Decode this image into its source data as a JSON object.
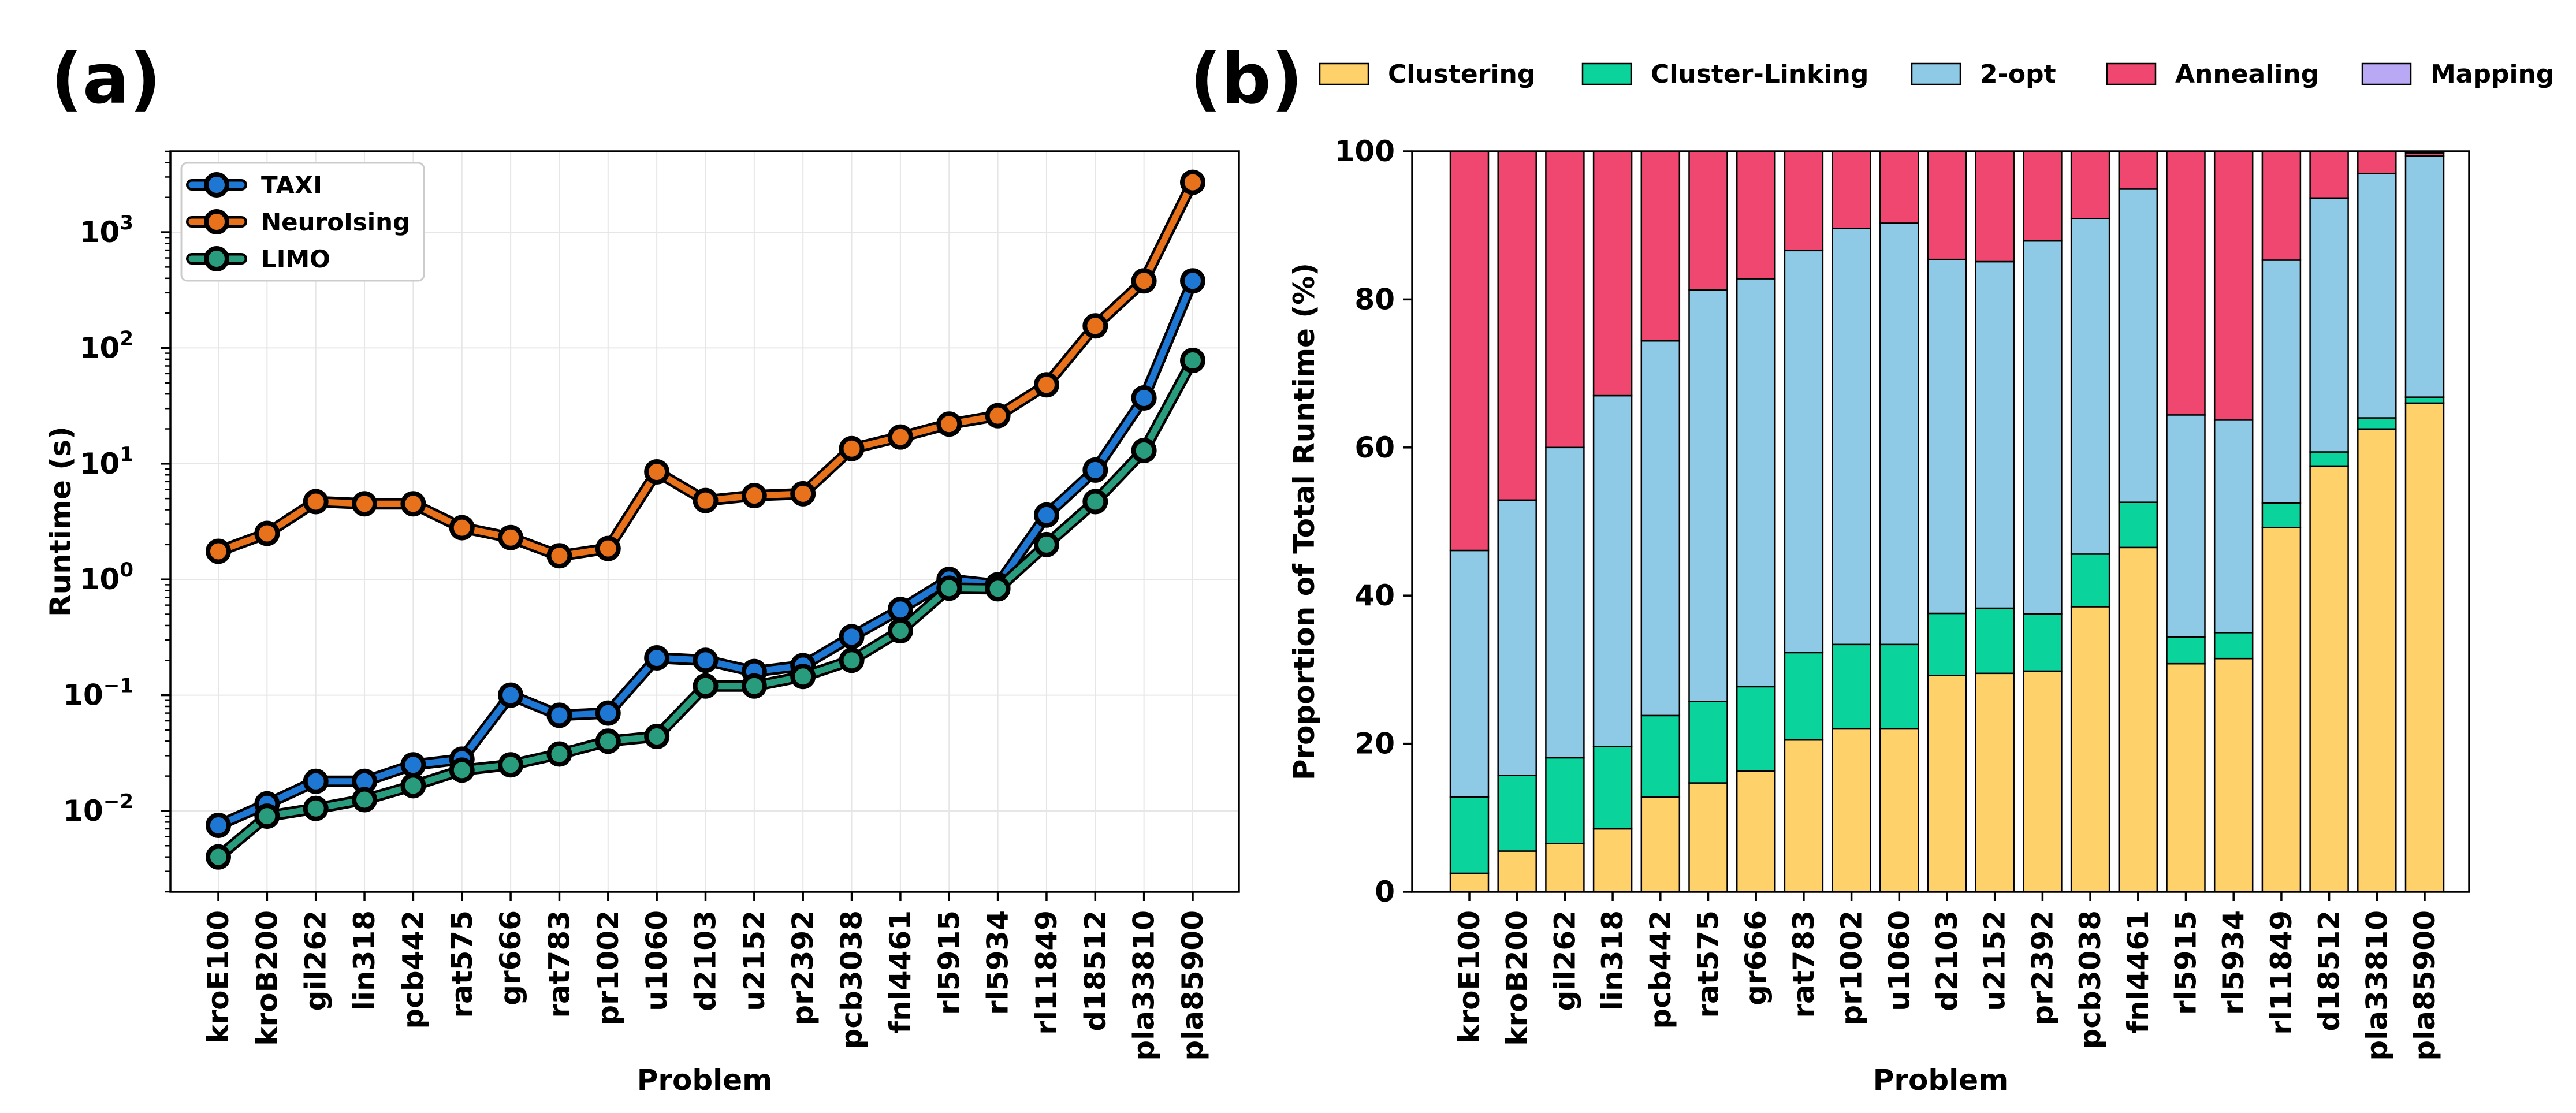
{
  "panel_labels": {
    "a": "(a)",
    "b": "(b)"
  },
  "chart_data": [
    {
      "type": "line",
      "panel": "(a)",
      "xlabel": "Problem",
      "ylabel": "Runtime (s)",
      "yscale": "log",
      "ylim": [
        0.002,
        5000
      ],
      "y_ticks": [
        {
          "value": 0.01,
          "base": "10",
          "exp": "−2"
        },
        {
          "value": 0.1,
          "base": "10",
          "exp": "−1"
        },
        {
          "value": 1,
          "base": "10",
          "exp": "0"
        },
        {
          "value": 10,
          "base": "10",
          "exp": "1"
        },
        {
          "value": 100,
          "base": "10",
          "exp": "2"
        },
        {
          "value": 1000,
          "base": "10",
          "exp": "3"
        }
      ],
      "grid": true,
      "legend_position": "top-left",
      "categories": [
        "kroE100",
        "kroB200",
        "gil262",
        "lin318",
        "pcb442",
        "rat575",
        "gr666",
        "rat783",
        "pr1002",
        "u1060",
        "d2103",
        "u2152",
        "pr2392",
        "pcb3038",
        "fnl4461",
        "rl5915",
        "rl5934",
        "rl11849",
        "d18512",
        "pla33810",
        "pla85900"
      ],
      "series": [
        {
          "name": "TAXI",
          "color": "#1f77d4",
          "values": [
            0.0075,
            0.0115,
            0.018,
            0.018,
            0.025,
            0.028,
            0.1,
            0.067,
            0.07,
            0.21,
            0.2,
            0.16,
            0.18,
            0.32,
            0.55,
            1.0,
            0.9,
            3.6,
            8.8,
            37,
            380
          ]
        },
        {
          "name": "NeuroIsing",
          "color": "#e8711c",
          "values": [
            1.75,
            2.5,
            4.7,
            4.5,
            4.5,
            2.8,
            2.3,
            1.6,
            1.85,
            8.5,
            4.8,
            5.3,
            5.5,
            13.5,
            17,
            22,
            26,
            48,
            155,
            380,
            2700
          ]
        },
        {
          "name": "LIMO",
          "color": "#2a9c7e",
          "values": [
            0.004,
            0.009,
            0.0105,
            0.0125,
            0.0165,
            0.0225,
            0.025,
            0.031,
            0.04,
            0.044,
            0.12,
            0.12,
            0.145,
            0.2,
            0.36,
            0.84,
            0.83,
            2.0,
            4.7,
            13,
            78
          ]
        }
      ]
    },
    {
      "type": "bar",
      "stacked": true,
      "panel": "(b)",
      "xlabel": "Problem",
      "ylabel": "Proportion of Total Runtime (%)",
      "ylim": [
        0,
        100
      ],
      "y_ticks": [
        0,
        20,
        40,
        60,
        80,
        100
      ],
      "legend_position": "top",
      "categories": [
        "kroE100",
        "kroB200",
        "gil262",
        "lin318",
        "pcb442",
        "rat575",
        "gr666",
        "rat783",
        "pr1002",
        "u1060",
        "d2103",
        "u2152",
        "pr2392",
        "pcb3038",
        "fnl4461",
        "rl5915",
        "rl5934",
        "rl11849",
        "d18512",
        "pla33810",
        "pla85900"
      ],
      "series": [
        {
          "name": "Clustering",
          "color": "#ffd16b",
          "values": [
            2.5,
            5.5,
            6.5,
            8.5,
            12.8,
            14.7,
            16.3,
            20.5,
            22,
            22,
            29.2,
            29.5,
            29.8,
            38.5,
            46.5,
            30.8,
            31.5,
            49.2,
            57.5,
            62.5,
            66
          ]
        },
        {
          "name": "Cluster-Linking",
          "color": "#0ad49b",
          "values": [
            10.3,
            10.2,
            11.6,
            11.1,
            11,
            11,
            11.4,
            11.8,
            11.4,
            11.4,
            8.4,
            8.8,
            7.7,
            7.1,
            6.1,
            3.6,
            3.5,
            3.3,
            1.9,
            1.5,
            0.8
          ]
        },
        {
          "name": "2-opt",
          "color": "#8ecae6",
          "values": [
            33.3,
            37.2,
            41.9,
            47.4,
            50.6,
            55.6,
            55.1,
            54.3,
            56.2,
            56.9,
            47.8,
            46.8,
            50.4,
            45.3,
            42.3,
            30,
            28.7,
            32.8,
            34.3,
            33,
            32.6
          ]
        },
        {
          "name": "Annealing",
          "color": "#ef476f",
          "values": [
            53.9,
            47.1,
            40,
            33,
            25.6,
            18.7,
            17.2,
            13.4,
            10.4,
            9.7,
            14.6,
            14.9,
            12.1,
            9.1,
            5.1,
            35.6,
            36.3,
            14.7,
            6.3,
            3,
            0.4
          ]
        },
        {
          "name": "Mapping",
          "color": "#b9a9f5",
          "values": [
            0,
            0,
            0,
            0,
            0,
            0,
            0,
            0,
            0,
            0,
            0,
            0,
            0,
            0,
            0,
            0,
            0,
            0,
            0,
            0,
            0.2
          ]
        }
      ]
    }
  ]
}
